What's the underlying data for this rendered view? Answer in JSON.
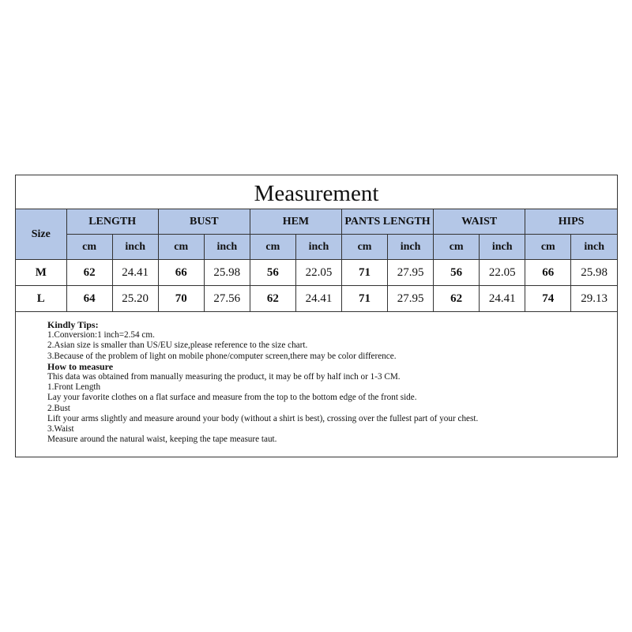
{
  "title": "Measurement",
  "table": {
    "size_label": "Size",
    "groups": [
      "LENGTH",
      "BUST",
      "HEM",
      "PANTS LENGTH",
      "WAIST",
      "HIPS"
    ],
    "units": [
      "cm",
      "inch"
    ],
    "rows": [
      {
        "size": "M",
        "values": [
          "62",
          "24.41",
          "66",
          "25.98",
          "56",
          "22.05",
          "71",
          "27.95",
          "56",
          "22.05",
          "66",
          "25.98"
        ]
      },
      {
        "size": "L",
        "values": [
          "64",
          "25.20",
          "70",
          "27.56",
          "62",
          "24.41",
          "71",
          "27.95",
          "62",
          "24.41",
          "74",
          "29.13"
        ]
      }
    ]
  },
  "header_color": "#b4c7e7",
  "tips": {
    "heading": "Kindly Tips:",
    "items": [
      "1.Conversion:1 inch=2.54 cm.",
      "2.Asian size is smaller than US/EU size,please reference to the size chart.",
      "3.Because of the problem of light on mobile phone/computer screen,there may be color difference."
    ],
    "measure_heading": "How to measure",
    "measure_lines": [
      "This data was obtained from manually measuring the product, it may be off by half inch or 1-3 CM.",
      "1.Front Length",
      "Lay your favorite clothes on a flat surface and measure from the top to the bottom edge of the front side.",
      "2.Bust",
      "Lift your arms slightly and measure around your body (without a shirt is best), crossing over the fullest part of your chest.",
      "3.Waist",
      "Measure around the natural waist, keeping the tape measure taut."
    ]
  }
}
